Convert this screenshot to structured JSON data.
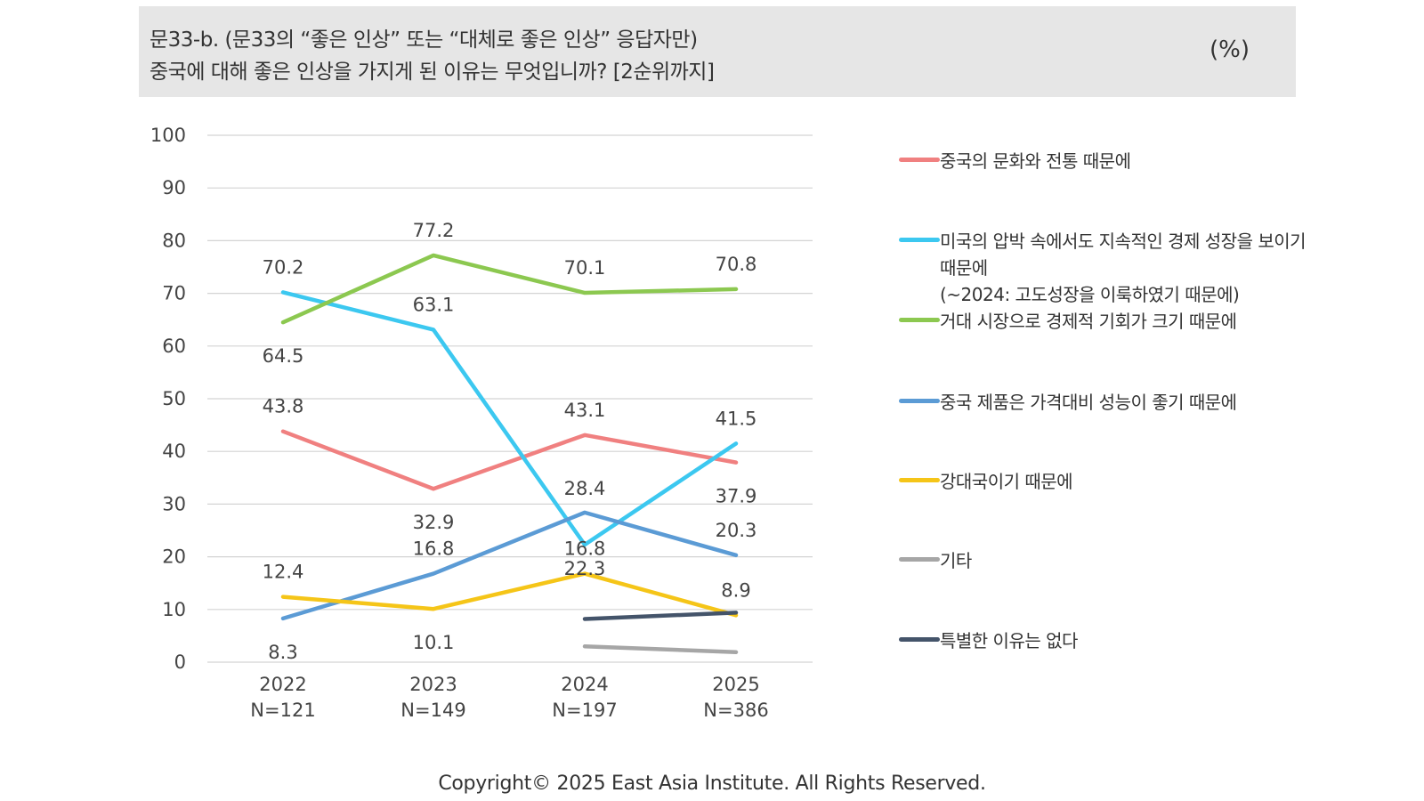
{
  "header": {
    "title_line1": "문33-b. (문33의 “좋은 인상” 또는 “대체로 좋은 인상” 응답자만)",
    "title_line2": "중국에 대해 좋은 인상을 가지게 된 이유는 무엇입니까? [2순위까지]",
    "unit": "(%)"
  },
  "footer": {
    "copyright": "Copyright© 2025 East Asia Institute. All Rights Reserved."
  },
  "chart_data": {
    "type": "line",
    "title": "",
    "xlabel": "",
    "ylabel": "",
    "ylim": [
      0,
      100
    ],
    "y_ticks": [
      0,
      10,
      20,
      30,
      40,
      50,
      60,
      70,
      80,
      90,
      100
    ],
    "grid": true,
    "legend_position": "right",
    "categories": [
      "2022",
      "2023",
      "2024",
      "2025"
    ],
    "category_sublabels": [
      "N=121",
      "N=149",
      "N=197",
      "N=386"
    ],
    "series": [
      {
        "name": "중국의 문화와 전통 때문에",
        "color": "#f08080",
        "values": [
          43.8,
          32.9,
          43.1,
          37.9
        ],
        "labels": [
          "43.8",
          "32.9",
          "43.1",
          "37.9"
        ]
      },
      {
        "name": "미국의 압박 속에서도 지속적인 경제 성장을 보이기 때문에\n(~2024: 고도성장을 이룩하였기 때문에)",
        "color": "#3cc8f0",
        "values": [
          70.2,
          63.1,
          22.3,
          41.5
        ],
        "labels": [
          "70.2",
          "63.1",
          "22.3",
          "41.5"
        ]
      },
      {
        "name": "거대 시장으로 경제적 기회가 크기 때문에",
        "color": "#8cc850",
        "values": [
          64.5,
          77.2,
          70.1,
          70.8
        ],
        "labels": [
          "64.5",
          "77.2",
          "70.1",
          "70.8"
        ]
      },
      {
        "name": "중국 제품은 가격대비 성능이 좋기 때문에",
        "color": "#5b9bd5",
        "values": [
          8.3,
          16.8,
          28.4,
          20.3
        ],
        "labels": [
          "8.3",
          "16.8",
          "28.4",
          "20.3"
        ]
      },
      {
        "name": "강대국이기 때문에",
        "color": "#f5c518",
        "values": [
          12.4,
          10.1,
          16.8,
          8.9
        ],
        "labels": [
          "12.4",
          "10.1",
          "16.8",
          "8.9"
        ]
      },
      {
        "name": "기타",
        "color": "#a6a6a6",
        "values": [
          null,
          null,
          3.0,
          1.9
        ],
        "labels": [
          null,
          null,
          null,
          null
        ]
      },
      {
        "name": "특별한 이유는 없다",
        "color": "#44546a",
        "values": [
          null,
          null,
          8.2,
          9.4
        ],
        "labels": [
          null,
          null,
          null,
          null
        ]
      }
    ]
  }
}
